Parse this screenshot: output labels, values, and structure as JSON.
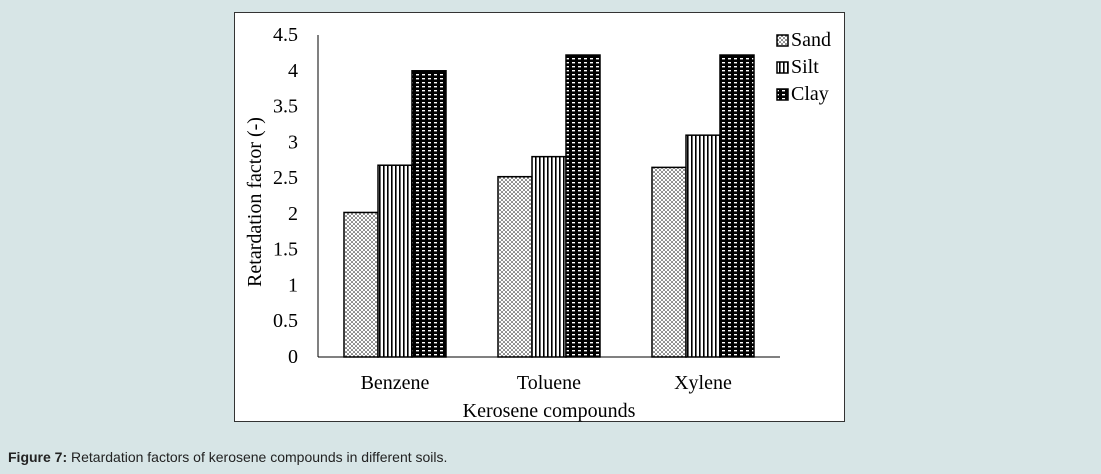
{
  "chart_data": {
    "type": "bar",
    "categories": [
      "Benzene",
      "Toluene",
      "Xylene"
    ],
    "series": [
      {
        "name": "Sand",
        "values": [
          2.02,
          2.52,
          2.65
        ],
        "pattern": "dots"
      },
      {
        "name": "Silt",
        "values": [
          2.68,
          2.8,
          3.1
        ],
        "pattern": "vertical-lines"
      },
      {
        "name": "Clay",
        "values": [
          4.0,
          4.22,
          4.22
        ],
        "pattern": "dense-weave"
      }
    ],
    "title": "",
    "xlabel": "Kerosene compounds",
    "ylabel": "Retardation factor (-)",
    "ylim": [
      0,
      4.5
    ],
    "yticks": [
      "0",
      "0.5",
      "1",
      "1.5",
      "2",
      "2.5",
      "3",
      "3.5",
      "4",
      "4.5"
    ],
    "grid": false,
    "legend_position": "top-right"
  },
  "caption": {
    "label": "Figure 7:",
    "text": " Retardation factors of kerosene compounds in different soils."
  },
  "colors": {
    "page_background": "#d7e5e6",
    "bar_stroke": "#000000",
    "axis": "#000000"
  }
}
